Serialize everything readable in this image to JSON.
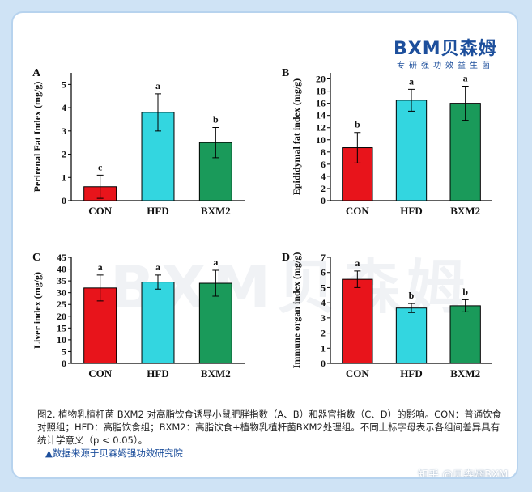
{
  "header": {
    "logo": "BXM贝森姆",
    "slogan": "专研强功效益生菌"
  },
  "caption": "图2. 植物乳植杆菌 BXM2 对高脂饮食诱导小鼠肥胖指数（A、B）和器官指数（C、D）的影响。CON：普通饮食对照组；HFD：高脂饮食组；BXM2：高脂饮食+植物乳植杆菌BXM2处理组。不同上标字母表示各组间差异具有统计学意义（p < 0.05）。",
  "source": "▲数据来源于贝森姆强功效研究院",
  "watermark": "知乎 @贝森姆BXM",
  "chart_data": [
    {
      "type": "bar",
      "panel": "A",
      "ylabel": "Perirenal Fat Index (mg/g)",
      "categories": [
        "CON",
        "HFD",
        "BXM2"
      ],
      "values": [
        0.6,
        3.8,
        2.5
      ],
      "errors": [
        0.5,
        0.8,
        0.65
      ],
      "annotations": [
        "c",
        "a",
        "b"
      ],
      "colors": [
        "#e8141b",
        "#33d6e0",
        "#1a9a5a"
      ],
      "ylim": [
        0,
        5.5
      ],
      "yticks": [
        0,
        1,
        2,
        3,
        4,
        5
      ]
    },
    {
      "type": "bar",
      "panel": "B",
      "ylabel": "Epididymal fat index (mg/g)",
      "categories": [
        "CON",
        "HFD",
        "BXM2"
      ],
      "values": [
        8.7,
        16.5,
        16
      ],
      "errors": [
        2.5,
        1.8,
        2.8
      ],
      "annotations": [
        "b",
        "a",
        "a"
      ],
      "colors": [
        "#e8141b",
        "#33d6e0",
        "#1a9a5a"
      ],
      "ylim": [
        0,
        21
      ],
      "yticks": [
        0,
        2,
        4,
        6,
        8,
        10,
        12,
        14,
        16,
        18,
        20
      ]
    },
    {
      "type": "bar",
      "panel": "C",
      "ylabel": "Liver index (mg/g)",
      "categories": [
        "CON",
        "HFD",
        "BXM2"
      ],
      "values": [
        32,
        34.5,
        34
      ],
      "errors": [
        5.5,
        3,
        5.5
      ],
      "annotations": [
        "a",
        "a",
        "a"
      ],
      "colors": [
        "#e8141b",
        "#33d6e0",
        "#1a9a5a"
      ],
      "ylim": [
        0,
        45
      ],
      "yticks": [
        0,
        5,
        10,
        15,
        20,
        25,
        30,
        35,
        40,
        45
      ]
    },
    {
      "type": "bar",
      "panel": "D",
      "ylabel": "Immune organ index (mg/g)",
      "categories": [
        "CON",
        "HFD",
        "BXM2"
      ],
      "values": [
        5.55,
        3.65,
        3.8
      ],
      "errors": [
        0.55,
        0.3,
        0.4
      ],
      "annotations": [
        "a",
        "b",
        "b"
      ],
      "colors": [
        "#e8141b",
        "#33d6e0",
        "#1a9a5a"
      ],
      "ylim": [
        0,
        7
      ],
      "yticks": [
        0,
        1,
        2,
        3,
        4,
        5,
        6,
        7
      ]
    }
  ]
}
